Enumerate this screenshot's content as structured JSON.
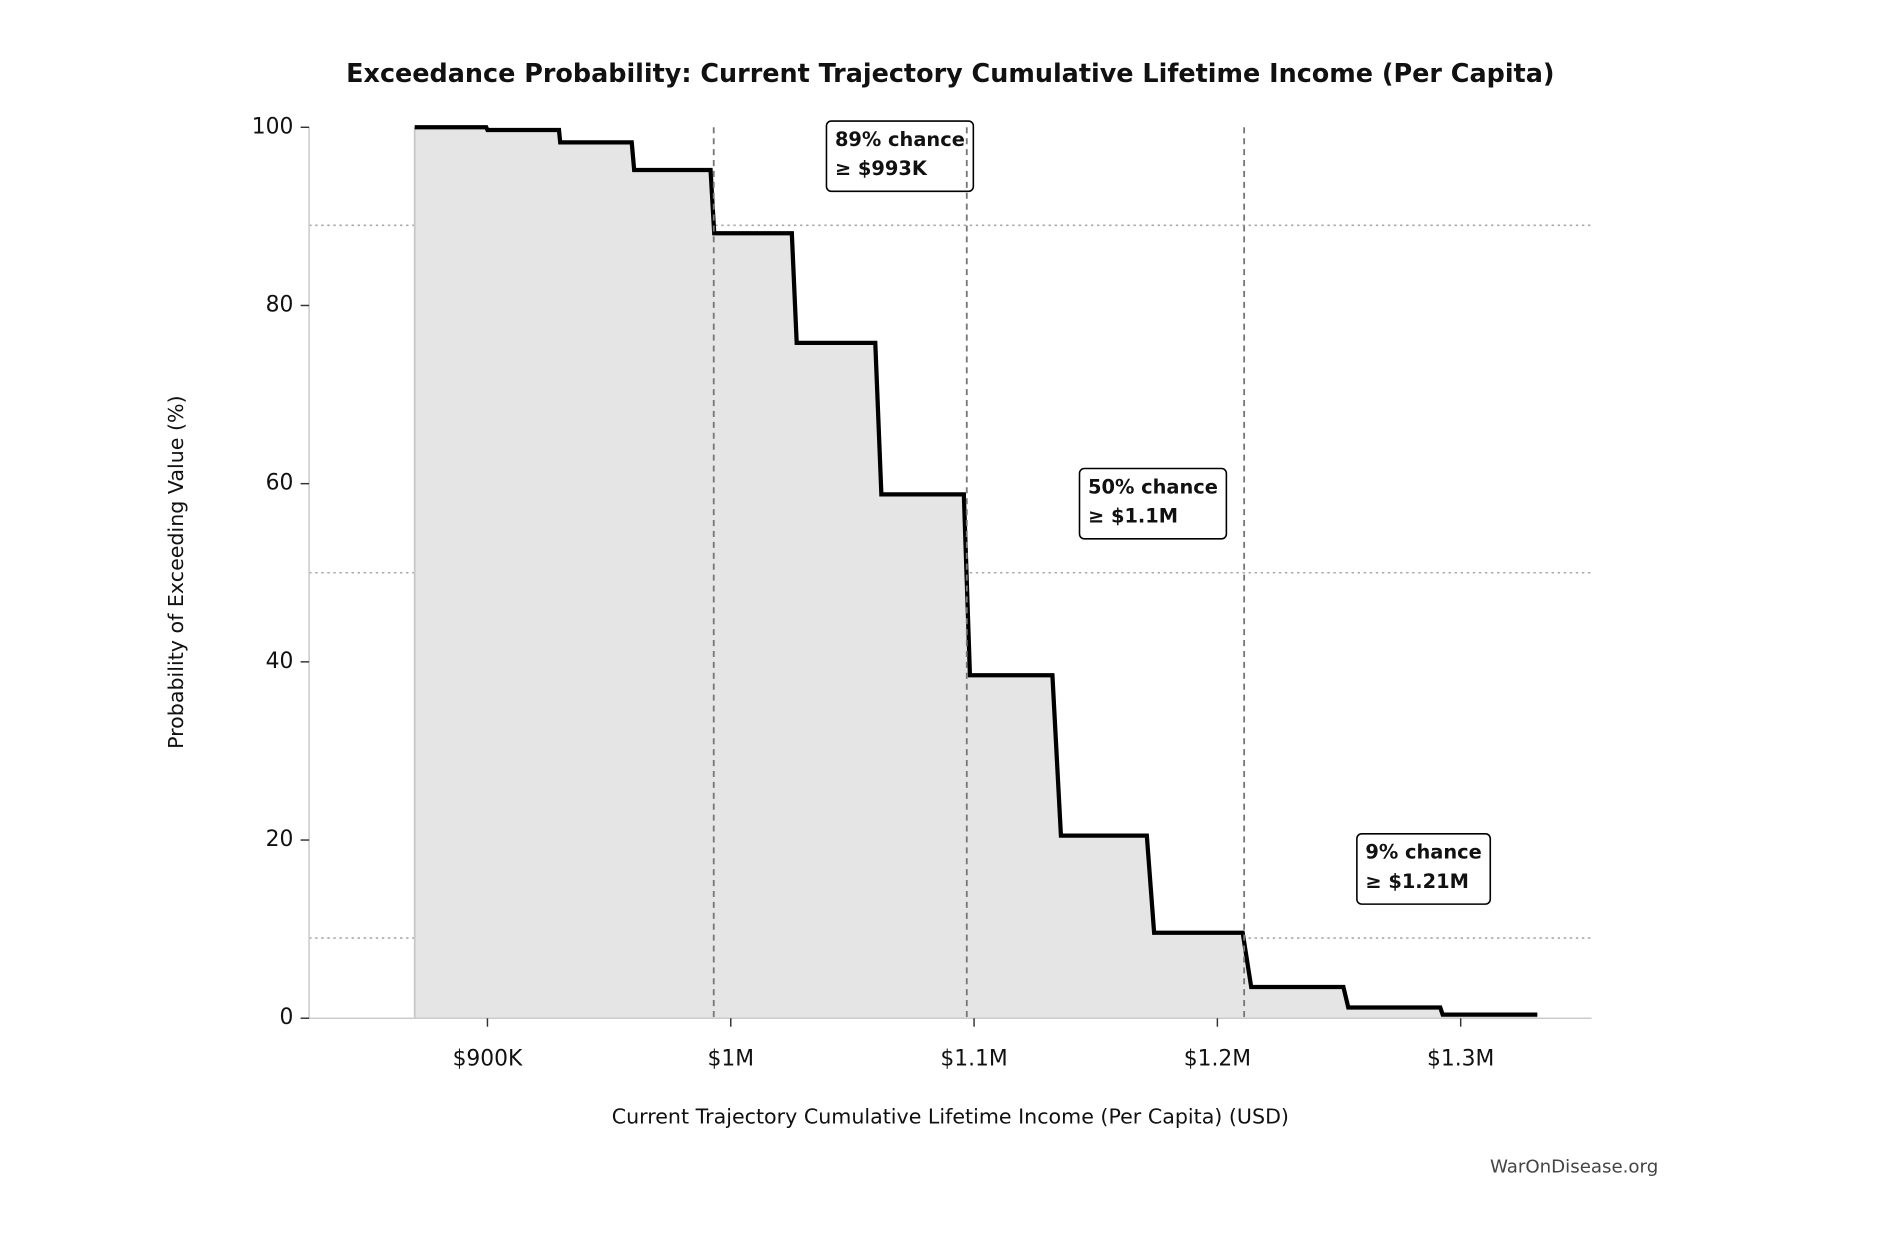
{
  "chart_data": {
    "type": "step",
    "title": "Exceedance Probability: Current Trajectory Cumulative Lifetime Income (Per Capita)",
    "x_label": "Current Trajectory Cumulative Lifetime Income (Per Capita) (USD)",
    "y_label": "Probability of Exceeding Value (%)",
    "watermark": "WarOnDisease.org",
    "xlim": [
      826700,
      1353800
    ],
    "ylim": [
      0,
      100
    ],
    "xticks": [
      {
        "value": 900000,
        "label": "$900K"
      },
      {
        "value": 1000000,
        "label": "$1M"
      },
      {
        "value": 1100000,
        "label": "$1.1M"
      },
      {
        "value": 1200000,
        "label": "$1.2M"
      },
      {
        "value": 1300000,
        "label": "$1.3M"
      }
    ],
    "yticks": [
      0,
      20,
      40,
      60,
      80,
      100
    ],
    "series": [
      {
        "color": "#000000",
        "fill": "#e5e5e5",
        "x": [
          870100,
          899500,
          900000,
          929400,
          929900,
          959300,
          960300,
          991700,
          993200,
          1025100,
          1027100,
          1059400,
          1061900,
          1095800,
          1098300,
          1132200,
          1135700,
          1171000,
          1174000,
          1210400,
          1213900,
          1251800,
          1253800,
          1291600,
          1292600,
          1331500
        ],
        "values": [
          100,
          100,
          99.7,
          99.7,
          98.3,
          98.3,
          95.2,
          95.2,
          88.1,
          88.1,
          75.8,
          75.8,
          58.8,
          58.8,
          38.5,
          38.5,
          20.5,
          20.5,
          9.6,
          9.6,
          3.5,
          3.5,
          1.2,
          1.2,
          0.4,
          0.4
        ]
      }
    ],
    "markers": [
      {
        "x": 993000,
        "prob": 89,
        "label": [
          "89% chance",
          "≥ $993K"
        ]
      },
      {
        "x": 1097000,
        "prob": 50,
        "label": [
          "50% chance",
          "≥ $1.1M"
        ]
      },
      {
        "x": 1211000,
        "prob": 9,
        "label": [
          "9% chance",
          "≥ $1.21M"
        ]
      }
    ]
  }
}
